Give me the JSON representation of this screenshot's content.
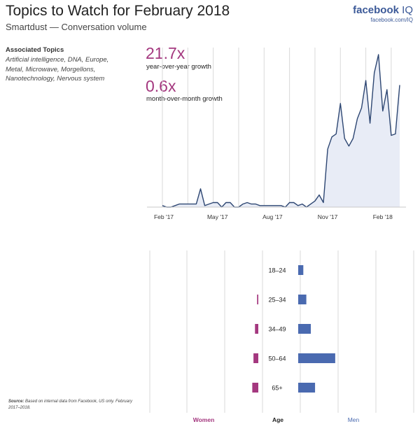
{
  "header": {
    "title": "Topics to Watch for February 2018",
    "subtitle": "Smartdust — Conversation volume"
  },
  "brand": {
    "name": "facebook",
    "suffix": " IQ",
    "url": "facebook.com/IQ",
    "color": "#3b5998"
  },
  "associated": {
    "heading": "Associated Topics",
    "topics": "Artificial intelligence, DNA, Europe, Metal, Microwave, Morgellons, Nanotechnology, Nervous system"
  },
  "stats": [
    {
      "value": "21.7x",
      "label": "year-over-year growth"
    },
    {
      "value": "0.6x",
      "label": "month-over-month growth"
    }
  ],
  "source": {
    "label": "Source:",
    "text": "Based on internal data from Facebook, US only. February 2017–2018."
  },
  "colors": {
    "accent": "#a4387f",
    "men": "#4a6ab0",
    "line": "#2d4672",
    "area": "#e8ecf6",
    "grid": "#d9d9d9"
  },
  "chart_data": [
    {
      "type": "area",
      "title": "",
      "xlabel": "",
      "ylabel": "",
      "x_ticks": [
        "Feb '17",
        "May '17",
        "Aug '17",
        "Nov '17",
        "Feb '18"
      ],
      "x_tick_positions": [
        0,
        13,
        26,
        39,
        52
      ],
      "ylim": [
        0,
        100
      ],
      "grid": "vertical",
      "series": [
        {
          "values": [
            1,
            0,
            0,
            1,
            2,
            2,
            2,
            2,
            2,
            12,
            1,
            2,
            3,
            3,
            0,
            3,
            3,
            0,
            0,
            2,
            3,
            2,
            2,
            1,
            1,
            1,
            1,
            1,
            1,
            0,
            3,
            3,
            1,
            2,
            0,
            2,
            4,
            8,
            3,
            38,
            46,
            48,
            68,
            45,
            40,
            45,
            58,
            65,
            83,
            55,
            88,
            100,
            63,
            77,
            47,
            48,
            80
          ]
        }
      ]
    },
    {
      "type": "bar",
      "title": "",
      "orientation": "horizontal-diverging",
      "categories": [
        "18–24",
        "25–34",
        "34–49",
        "50–64",
        "65+"
      ],
      "center_label": "Age",
      "series": [
        {
          "name": "Women",
          "values": [
            0.0,
            0.4,
            1.1,
            1.6,
            2.0
          ]
        },
        {
          "name": "Men",
          "values": [
            1.7,
            2.7,
            4.2,
            12.3,
            5.6
          ]
        }
      ]
    }
  ]
}
